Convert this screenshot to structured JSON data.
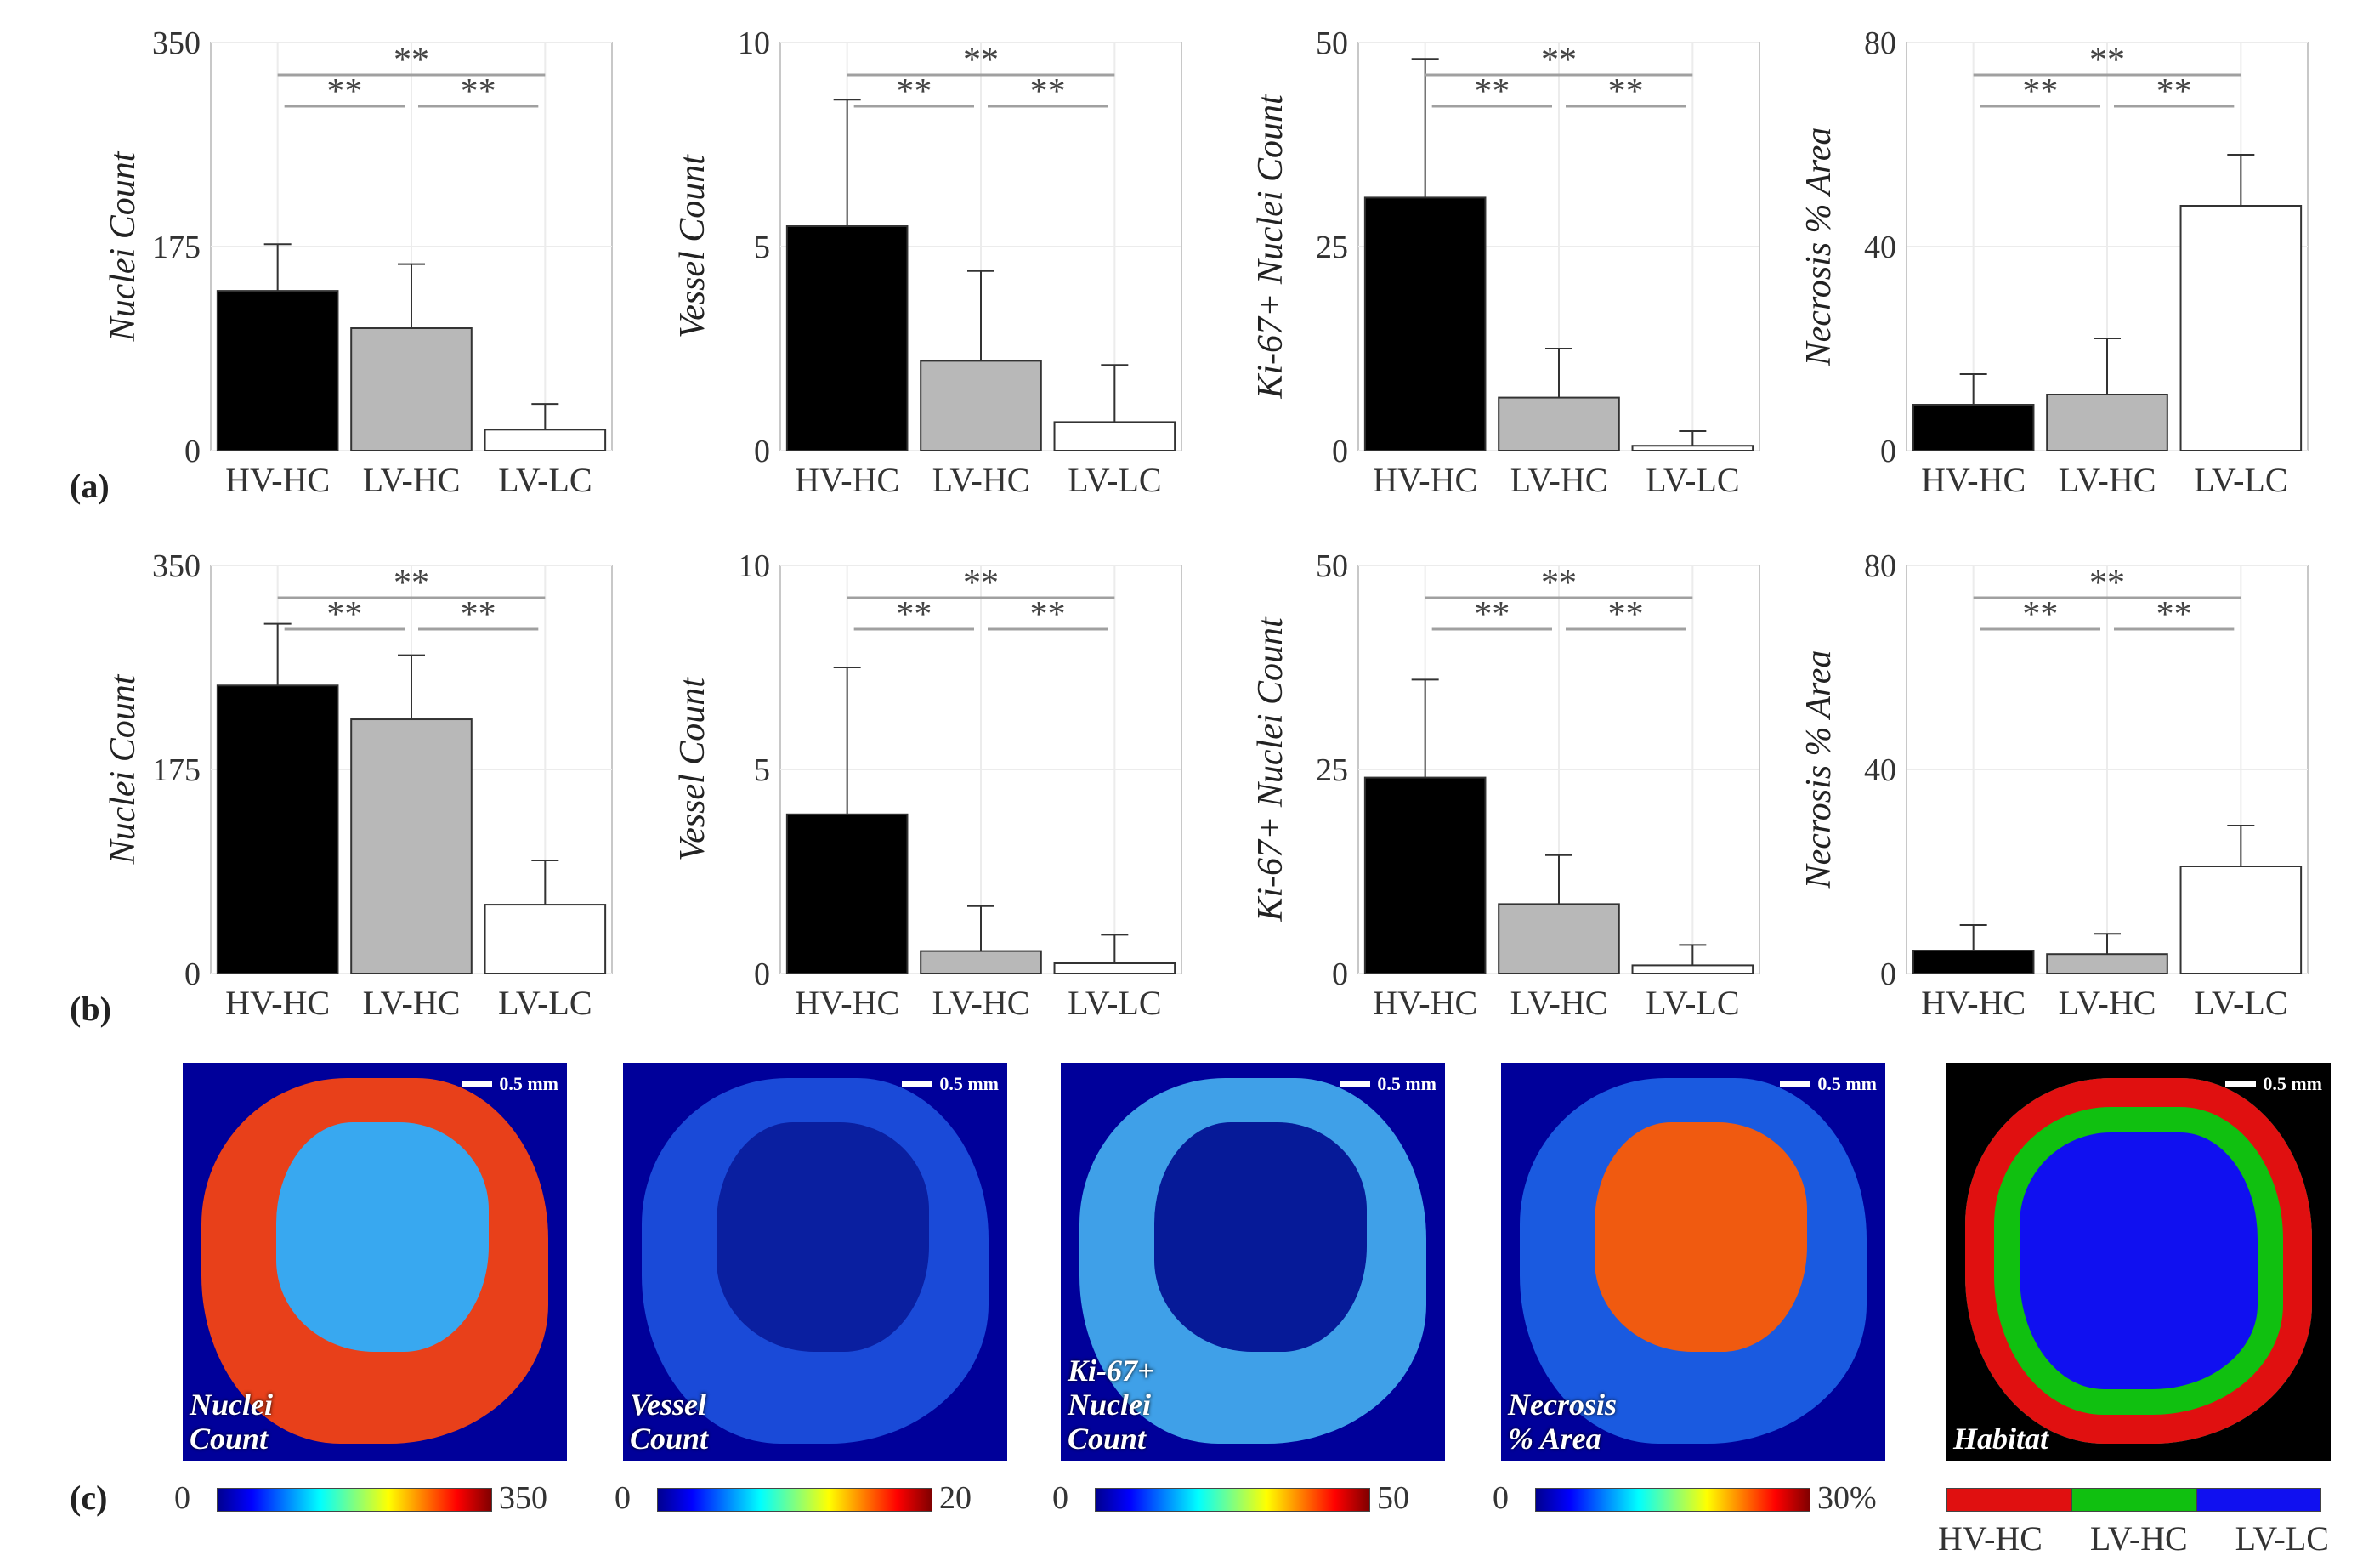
{
  "panel_letters": {
    "a": "(a)",
    "b": "(b)",
    "c": "(c)"
  },
  "significance_marker": "**",
  "chart_data": [
    {
      "panel": "a",
      "type": "bar",
      "categories": [
        "HV-HC",
        "LV-HC",
        "LV-LC"
      ],
      "values": [
        137,
        105,
        18
      ],
      "errors": [
        40,
        55,
        22
      ],
      "ylabel": "Nuclei Count",
      "ylim": [
        0,
        350
      ],
      "yticks": [
        0,
        175,
        350
      ]
    },
    {
      "panel": "a",
      "type": "bar",
      "categories": [
        "HV-HC",
        "LV-HC",
        "LV-LC"
      ],
      "values": [
        5.5,
        2.2,
        0.7
      ],
      "errors": [
        3.1,
        2.2,
        1.4
      ],
      "ylabel": "Vessel Count",
      "ylim": [
        0,
        10
      ],
      "yticks": [
        0,
        5,
        10
      ]
    },
    {
      "panel": "a",
      "type": "bar",
      "categories": [
        "HV-HC",
        "LV-HC",
        "LV-LC"
      ],
      "values": [
        31,
        6.5,
        0.6
      ],
      "errors": [
        17,
        6,
        1.8
      ],
      "ylabel": "Ki-67+ Nuclei Count",
      "ylim": [
        0,
        50
      ],
      "yticks": [
        0,
        25,
        50
      ]
    },
    {
      "panel": "a",
      "type": "bar",
      "categories": [
        "HV-HC",
        "LV-HC",
        "LV-LC"
      ],
      "values": [
        9,
        11,
        48
      ],
      "errors": [
        6,
        11,
        10
      ],
      "ylabel": "Necrosis % Area",
      "ylim": [
        0,
        80
      ],
      "yticks": [
        0,
        40,
        80
      ]
    },
    {
      "panel": "b",
      "type": "bar",
      "categories": [
        "HV-HC",
        "LV-HC",
        "LV-LC"
      ],
      "values": [
        247,
        218,
        59
      ],
      "errors": [
        53,
        55,
        38
      ],
      "ylabel": "Nuclei Count",
      "ylim": [
        0,
        350
      ],
      "yticks": [
        0,
        175,
        350
      ]
    },
    {
      "panel": "b",
      "type": "bar",
      "categories": [
        "HV-HC",
        "LV-HC",
        "LV-LC"
      ],
      "values": [
        3.9,
        0.55,
        0.25
      ],
      "errors": [
        3.6,
        1.1,
        0.7
      ],
      "ylabel": "Vessel Count",
      "ylim": [
        0,
        10
      ],
      "yticks": [
        0,
        5,
        10
      ]
    },
    {
      "panel": "b",
      "type": "bar",
      "categories": [
        "HV-HC",
        "LV-HC",
        "LV-LC"
      ],
      "values": [
        24,
        8.5,
        1.0
      ],
      "errors": [
        12,
        6,
        2.5
      ],
      "ylabel": "Ki-67+ Nuclei Count",
      "ylim": [
        0,
        50
      ],
      "yticks": [
        0,
        25,
        50
      ]
    },
    {
      "panel": "b",
      "type": "bar",
      "categories": [
        "HV-HC",
        "LV-HC",
        "LV-LC"
      ],
      "values": [
        4.5,
        3.8,
        21
      ],
      "errors": [
        5,
        4,
        8
      ],
      "ylabel": "Necrosis % Area",
      "ylim": [
        0,
        80
      ],
      "yticks": [
        0,
        40,
        80
      ]
    }
  ],
  "heatmaps": [
    {
      "label": "Nuclei\nCount",
      "scale": "0.5 mm",
      "cb_min": "0",
      "cb_max": "350",
      "outer_color": "#e8401a",
      "inner_color": "#38a8f0",
      "colorbar": "jet"
    },
    {
      "label": "Vessel\nCount",
      "scale": "0.5 mm",
      "cb_min": "0",
      "cb_max": "20",
      "outer_color": "#1a4ad8",
      "inner_color": "#0a1fa0",
      "colorbar": "jet"
    },
    {
      "label": "Ki-67+\nNuclei\nCount",
      "scale": "0.5 mm",
      "cb_min": "0",
      "cb_max": "50",
      "outer_color": "#3fa0e8",
      "inner_color": "#061a98",
      "colorbar": "jet"
    },
    {
      "label": "Necrosis\n% Area",
      "scale": "0.5 mm",
      "cb_min": "0",
      "cb_max": "30%",
      "outer_color": "#1a5ae0",
      "inner_color": "#f05a10",
      "colorbar": "jet"
    },
    {
      "label": "Habitat",
      "scale": "0.5 mm",
      "cb_min": "",
      "cb_max": "",
      "outer_color": "#e01010",
      "inner_color": "#1010f0",
      "colorbar": "habitat"
    }
  ],
  "habitat_legend": {
    "colors": [
      "#e01010",
      "#10c010",
      "#1010f0"
    ],
    "labels": [
      "HV-HC",
      "LV-HC",
      "LV-LC"
    ]
  },
  "colors": {
    "hv_hc": "#000000",
    "lv_hc": "#b8b8b8",
    "lv_lc": "#ffffff",
    "background": "#00009a"
  }
}
